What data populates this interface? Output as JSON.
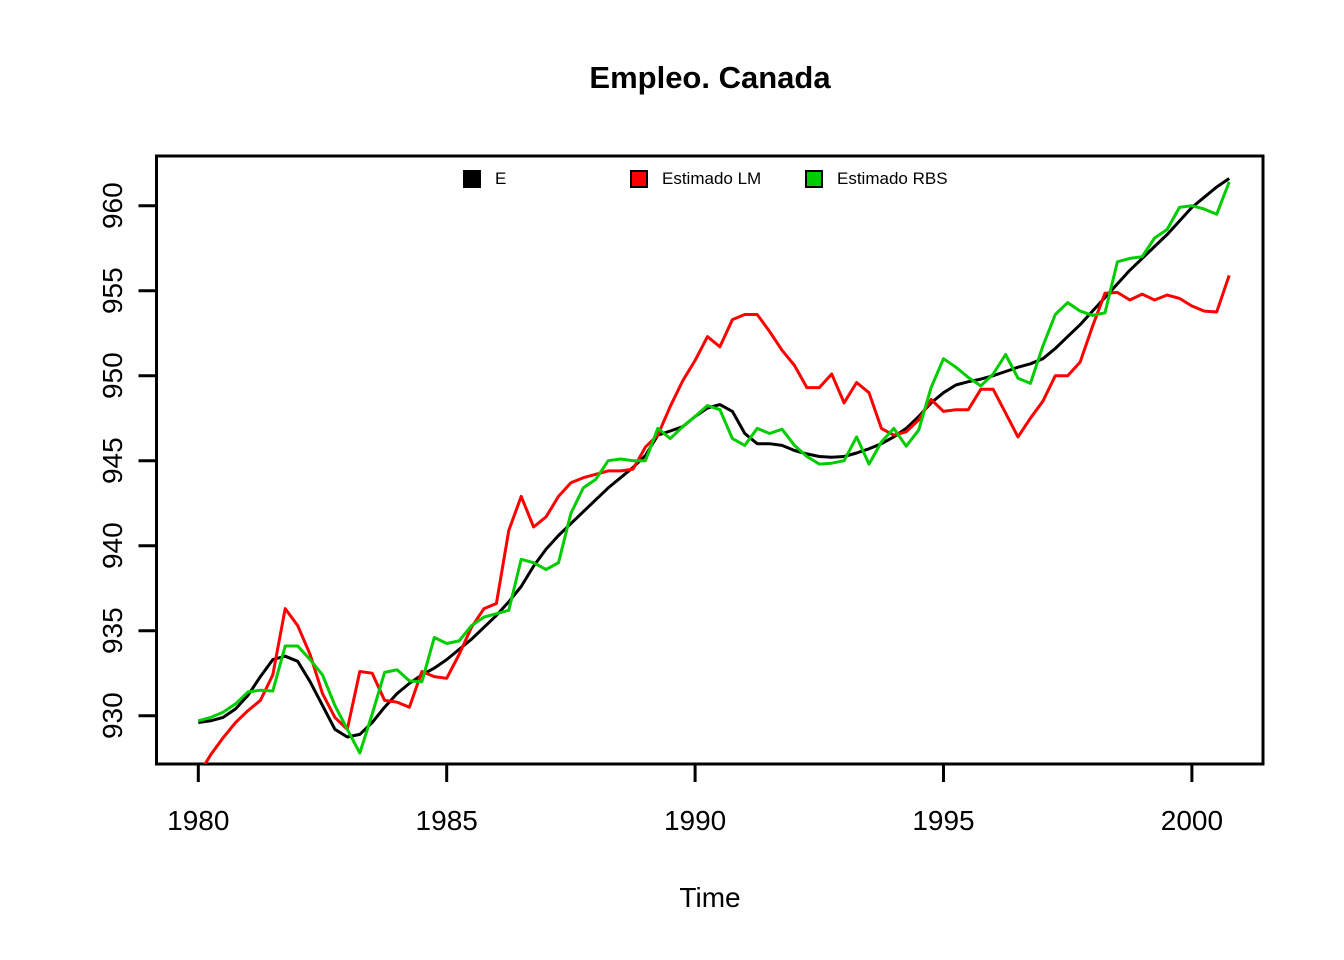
{
  "title": "Empleo. Canada",
  "xlabel": "Time",
  "background_color": "#ffffff",
  "legend": [
    {
      "label": "E",
      "color": "#000000"
    },
    {
      "label": "Estimado LM",
      "color": "#FF0000"
    },
    {
      "label": "Estimado RBS",
      "color": "#00CD00"
    }
  ],
  "chart_data": {
    "type": "line",
    "title": "Empleo. Canada",
    "xlabel": "Time",
    "ylabel": "",
    "x_start": 1980,
    "x_step": 0.25,
    "x_ticks": [
      1980,
      1985,
      1990,
      1995,
      2000
    ],
    "y_ticks": [
      930,
      935,
      940,
      945,
      950,
      955,
      960
    ],
    "xlim": [
      1979.15,
      2001.45
    ],
    "ylim": [
      927.16,
      962.9
    ],
    "grid": false,
    "legend_position": "top-inside",
    "frequency": "quarterly",
    "series": [
      {
        "name": "E",
        "color": "#000000",
        "values": [
          929.6,
          929.7,
          929.9,
          930.4,
          931.2,
          932.3,
          933.3,
          933.5,
          933.2,
          932.0,
          930.6,
          929.2,
          928.75,
          928.9,
          929.6,
          930.5,
          931.3,
          931.9,
          932.4,
          932.8,
          933.3,
          933.9,
          934.5,
          935.2,
          935.9,
          936.7,
          937.6,
          938.8,
          939.8,
          940.6,
          941.3,
          942.0,
          942.7,
          943.4,
          944.0,
          944.6,
          945.3,
          946.5,
          946.75,
          947.0,
          947.6,
          948.1,
          948.3,
          947.9,
          946.6,
          946.0,
          946.0,
          945.9,
          945.6,
          945.4,
          945.25,
          945.2,
          945.25,
          945.45,
          945.7,
          946.0,
          946.4,
          946.9,
          947.6,
          948.4,
          949.0,
          949.45,
          949.65,
          949.8,
          950.0,
          950.25,
          950.5,
          950.7,
          951.0,
          951.6,
          952.3,
          953.0,
          953.8,
          954.6,
          955.4,
          956.2,
          956.9,
          957.6,
          958.3,
          959.1,
          959.9,
          960.5,
          961.1,
          961.6
        ]
      },
      {
        "name": "Estimado LM",
        "color": "#FF0000",
        "values": [
          926.5,
          927.7,
          928.7,
          929.6,
          930.3,
          930.9,
          932.4,
          936.3,
          935.3,
          933.6,
          931.3,
          929.9,
          929.2,
          932.6,
          932.5,
          930.9,
          930.8,
          930.5,
          932.6,
          932.3,
          932.2,
          933.6,
          935.2,
          936.3,
          936.6,
          940.9,
          942.9,
          941.1,
          941.7,
          942.9,
          943.7,
          944.0,
          944.2,
          944.4,
          944.4,
          944.5,
          945.8,
          946.5,
          948.2,
          949.7,
          950.9,
          952.3,
          951.7,
          953.3,
          953.6,
          953.6,
          952.6,
          951.5,
          950.6,
          949.3,
          949.3,
          950.1,
          948.4,
          949.6,
          949.0,
          946.9,
          946.5,
          946.7,
          947.4,
          948.6,
          947.9,
          948.0,
          948.0,
          949.2,
          949.2,
          947.8,
          946.4,
          947.5,
          948.5,
          950.0,
          950.0,
          950.8,
          952.9,
          954.85,
          954.9,
          954.45,
          954.8,
          954.45,
          954.75,
          954.55,
          954.1,
          953.8,
          953.75,
          955.9
        ]
      },
      {
        "name": "Estimado RBS",
        "color": "#00CD00",
        "values": [
          929.7,
          929.9,
          930.2,
          930.7,
          931.4,
          931.5,
          931.45,
          934.1,
          934.1,
          933.3,
          932.4,
          930.6,
          929.2,
          927.8,
          930.1,
          932.55,
          932.7,
          932.05,
          932.0,
          934.6,
          934.25,
          934.4,
          935.3,
          935.8,
          936.0,
          936.2,
          939.2,
          939.0,
          938.6,
          939.0,
          941.9,
          943.4,
          943.9,
          945.0,
          945.1,
          945.0,
          945.0,
          946.9,
          946.3,
          947.0,
          947.6,
          948.25,
          948.0,
          946.3,
          945.9,
          946.9,
          946.6,
          946.85,
          945.9,
          945.25,
          944.8,
          944.85,
          945.0,
          946.4,
          944.8,
          946.1,
          946.9,
          945.85,
          946.8,
          949.3,
          951.0,
          950.5,
          949.9,
          949.4,
          950.1,
          951.25,
          949.85,
          949.55,
          951.75,
          953.6,
          954.3,
          953.8,
          953.55,
          953.7,
          956.7,
          956.9,
          957.0,
          958.1,
          958.6,
          959.9,
          960.0,
          959.8,
          959.5,
          961.4
        ]
      }
    ]
  }
}
